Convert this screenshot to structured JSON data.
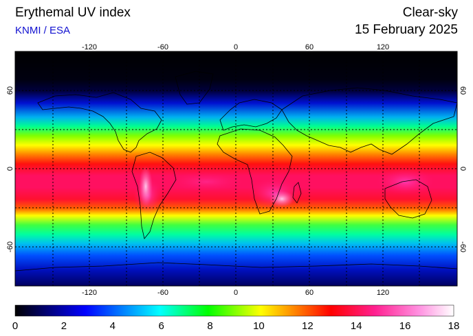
{
  "header": {
    "title": "Erythemal UV index",
    "credit": "KNMI / ESA",
    "mode": "Clear-sky",
    "date": "15 February 2025"
  },
  "map": {
    "projection": "equirectangular",
    "lon_range": [
      -180,
      180
    ],
    "lat_range": [
      -90,
      90
    ],
    "lon_ticks": [
      -120,
      -60,
      0,
      60,
      120
    ],
    "lat_ticks": [
      60,
      0,
      -60
    ],
    "lon_tick_labels": [
      "-120",
      "-60",
      "0",
      "60",
      "120"
    ],
    "lat_tick_labels": [
      "60",
      "0",
      "-60"
    ],
    "gridlines": "dotted, every 30 degrees"
  },
  "colorbar": {
    "min": 0,
    "max": 18,
    "ticks": [
      "0",
      "2",
      "4",
      "6",
      "8",
      "10",
      "12",
      "14",
      "16",
      "18"
    ]
  },
  "colors": {
    "credit": "#1010d0",
    "scale": [
      "#000000",
      "#000070",
      "#0000ff",
      "#00ffff",
      "#00ff00",
      "#ffff00",
      "#ff8000",
      "#ff0000",
      "#ff2090",
      "#ff90e0",
      "#ffffff"
    ]
  }
}
